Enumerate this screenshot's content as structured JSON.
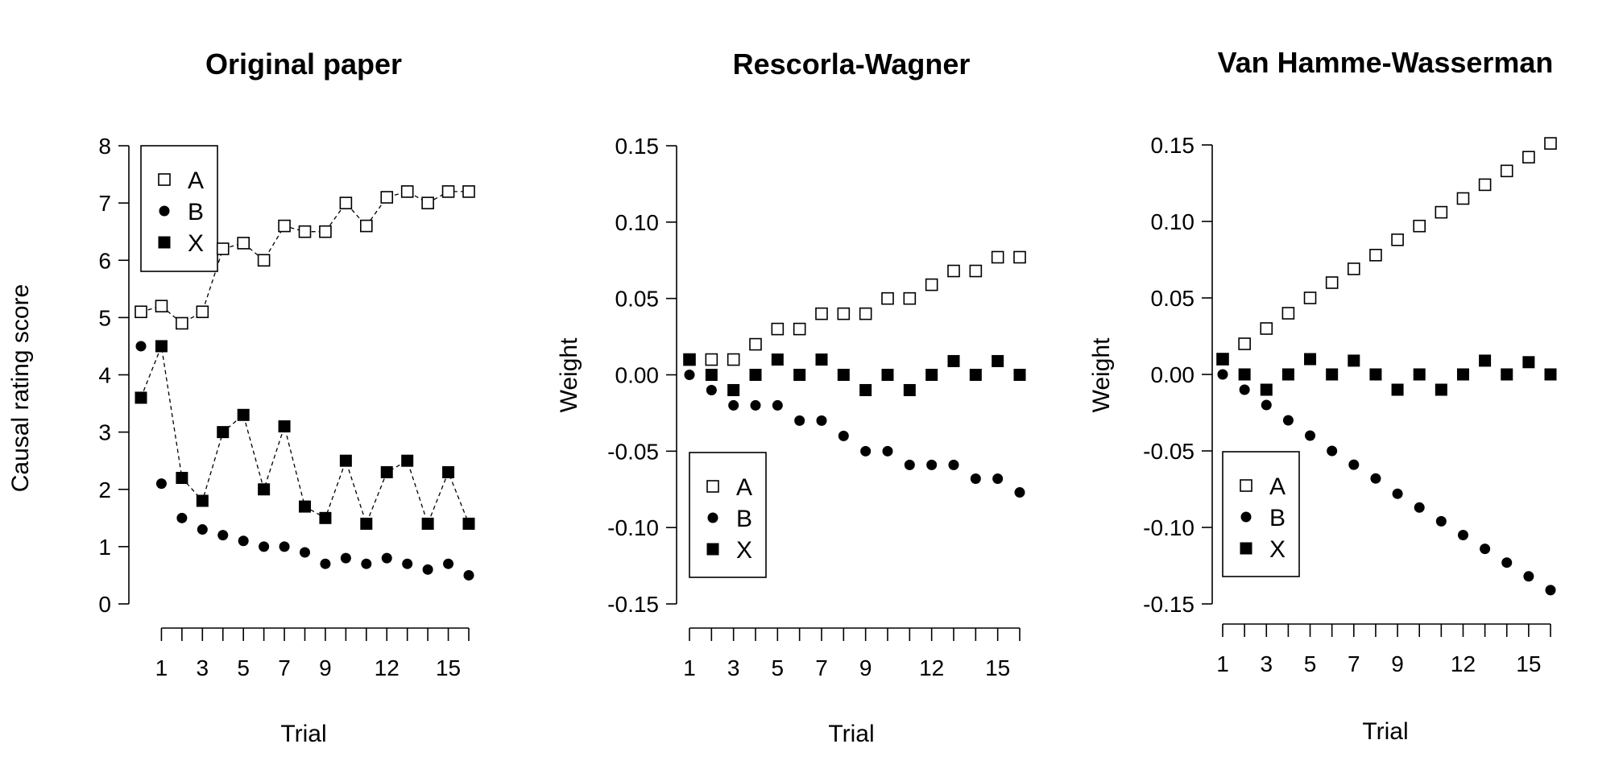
{
  "chart_data": [
    {
      "type": "scatter",
      "title": "Original paper",
      "xlabel": "Trial",
      "ylabel": "Causal rating score",
      "xlim": [
        0,
        16
      ],
      "ylim": [
        0,
        8
      ],
      "xticks": [
        1,
        3,
        5,
        7,
        9,
        12,
        15
      ],
      "yticks": [
        "0",
        "1",
        "2",
        "3",
        "4",
        "5",
        "6",
        "7",
        "8"
      ],
      "legend_position": "top-left",
      "grid": false,
      "series": [
        {
          "name": "A",
          "marker": "open-square",
          "connected": true,
          "x": [
            0,
            1,
            2,
            3,
            4,
            5,
            6,
            7,
            8,
            9,
            10,
            11,
            12,
            13,
            14,
            15,
            16
          ],
          "y": [
            5.1,
            5.2,
            4.9,
            5.1,
            6.2,
            6.3,
            6.0,
            6.6,
            6.5,
            6.5,
            7.0,
            6.6,
            7.1,
            7.2,
            7.0,
            7.2,
            7.2
          ]
        },
        {
          "name": "B",
          "marker": "filled-circle",
          "connected": false,
          "x": [
            0,
            1,
            2,
            3,
            4,
            5,
            6,
            7,
            8,
            9,
            10,
            11,
            12,
            13,
            14,
            15,
            16
          ],
          "y": [
            4.5,
            2.1,
            1.5,
            1.3,
            1.2,
            1.1,
            1.0,
            1.0,
            0.9,
            0.7,
            0.8,
            0.7,
            0.8,
            0.7,
            0.6,
            0.7,
            0.5
          ]
        },
        {
          "name": "X",
          "marker": "filled-square",
          "connected": true,
          "x": [
            0,
            1,
            2,
            3,
            4,
            5,
            6,
            7,
            8,
            9,
            10,
            11,
            12,
            13,
            14,
            15,
            16
          ],
          "y": [
            3.6,
            4.5,
            2.2,
            1.8,
            3.0,
            3.3,
            2.0,
            3.1,
            1.7,
            1.5,
            2.5,
            1.4,
            2.3,
            2.5,
            1.4,
            2.3,
            1.4
          ]
        }
      ]
    },
    {
      "type": "scatter",
      "title": "Rescorla-Wagner",
      "xlabel": "Trial",
      "ylabel": "Weight",
      "xlim": [
        1,
        16
      ],
      "ylim": [
        -0.15,
        0.15
      ],
      "xticks": [
        1,
        3,
        5,
        7,
        9,
        12,
        15
      ],
      "yticks": [
        "-0.15",
        "-0.10",
        "-0.05",
        "0.00",
        "0.05",
        "0.10",
        "0.15"
      ],
      "legend_position": "bottom-left",
      "grid": false,
      "series": [
        {
          "name": "A",
          "marker": "open-square",
          "x": [
            1,
            2,
            3,
            4,
            5,
            6,
            7,
            8,
            9,
            10,
            11,
            12,
            13,
            14,
            15,
            16
          ],
          "y": [
            0.01,
            0.01,
            0.01,
            0.02,
            0.03,
            0.03,
            0.04,
            0.04,
            0.04,
            0.05,
            0.05,
            0.059,
            0.068,
            0.068,
            0.077,
            0.077
          ]
        },
        {
          "name": "B",
          "marker": "filled-circle",
          "x": [
            1,
            2,
            3,
            4,
            5,
            6,
            7,
            8,
            9,
            10,
            11,
            12,
            13,
            14,
            15,
            16
          ],
          "y": [
            0.0,
            -0.01,
            -0.02,
            -0.02,
            -0.02,
            -0.03,
            -0.03,
            -0.04,
            -0.05,
            -0.05,
            -0.059,
            -0.059,
            -0.059,
            -0.068,
            -0.068,
            -0.077
          ]
        },
        {
          "name": "X",
          "marker": "filled-square",
          "x": [
            1,
            2,
            3,
            4,
            5,
            6,
            7,
            8,
            9,
            10,
            11,
            12,
            13,
            14,
            15,
            16
          ],
          "y": [
            0.01,
            0.0,
            -0.01,
            0.0,
            0.01,
            0.0,
            0.01,
            0.0,
            -0.01,
            0.0,
            -0.01,
            0.0,
            0.009,
            0.0,
            0.009,
            0.0
          ]
        }
      ]
    },
    {
      "type": "scatter",
      "title": "Van Hamme-Wasserman",
      "xlabel": "Trial",
      "ylabel": "Weight",
      "xlim": [
        1,
        16
      ],
      "ylim": [
        -0.15,
        0.15
      ],
      "xticks": [
        1,
        3,
        5,
        7,
        9,
        12,
        15
      ],
      "yticks": [
        "-0.15",
        "-0.10",
        "-0.05",
        "0.00",
        "0.05",
        "0.10",
        "0.15"
      ],
      "legend_position": "bottom-left",
      "grid": false,
      "series": [
        {
          "name": "A",
          "marker": "open-square",
          "x": [
            1,
            2,
            3,
            4,
            5,
            6,
            7,
            8,
            9,
            10,
            11,
            12,
            13,
            14,
            15,
            16
          ],
          "y": [
            0.01,
            0.02,
            0.03,
            0.04,
            0.05,
            0.06,
            0.069,
            0.078,
            0.088,
            0.097,
            0.106,
            0.115,
            0.124,
            0.133,
            0.142,
            0.151
          ]
        },
        {
          "name": "B",
          "marker": "filled-circle",
          "x": [
            1,
            2,
            3,
            4,
            5,
            6,
            7,
            8,
            9,
            10,
            11,
            12,
            13,
            14,
            15,
            16
          ],
          "y": [
            0.0,
            -0.01,
            -0.02,
            -0.03,
            -0.04,
            -0.05,
            -0.059,
            -0.068,
            -0.078,
            -0.087,
            -0.096,
            -0.105,
            -0.114,
            -0.123,
            -0.132,
            -0.141
          ]
        },
        {
          "name": "X",
          "marker": "filled-square",
          "x": [
            1,
            2,
            3,
            4,
            5,
            6,
            7,
            8,
            9,
            10,
            11,
            12,
            13,
            14,
            15,
            16
          ],
          "y": [
            0.01,
            0.0,
            -0.01,
            0.0,
            0.01,
            0.0,
            0.009,
            0.0,
            -0.01,
            0.0,
            -0.01,
            0.0,
            0.009,
            0.0,
            0.008,
            0.0
          ]
        }
      ]
    }
  ]
}
